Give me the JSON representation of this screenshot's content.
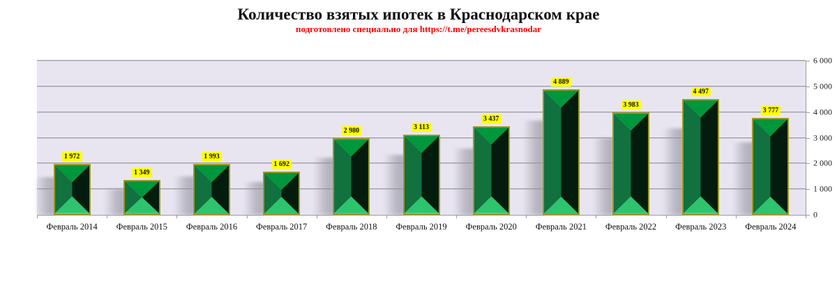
{
  "chart_data": {
    "type": "bar",
    "title": "Количество взятых ипотек в Краснодарском крае",
    "subtitle": "подготовлено специально для https://t.me/pereesdvkrasnodar",
    "categories": [
      "Февраль 2014",
      "Февраль 2015",
      "Февраль 2016",
      "Февраль 2017",
      "Февраль 2018",
      "Февраль 2019",
      "Февраль 2020",
      "Февраль 2021",
      "Февраль 2022",
      "Февраль 2023",
      "Февраль 2024"
    ],
    "values": [
      1972,
      1349,
      1993,
      1692,
      2980,
      3113,
      3437,
      4889,
      3983,
      4497,
      3777
    ],
    "value_labels": [
      "1 972",
      "1 349",
      "1 993",
      "1 692",
      "2 980",
      "3 113",
      "3 437",
      "4 889",
      "3 983",
      "4 497",
      "3 777"
    ],
    "xlabel": "",
    "ylabel": "",
    "ylim": [
      0,
      6000
    ],
    "yticks": [
      0,
      1000,
      2000,
      3000,
      4000,
      5000,
      6000
    ],
    "ytick_labels": [
      "0",
      "1 000",
      "2 000",
      "3 000",
      "4 000",
      "5 000",
      "6 000"
    ],
    "y_axis_position": "right",
    "grid": true,
    "legend": null,
    "colors": {
      "plot_background": "#e8e5f1",
      "bar_top": "#00963c",
      "bar_left": "#11713f",
      "bar_right": "#041c0d",
      "bar_bottom": "#2ec46e",
      "bar_border": "#9a9a20",
      "label_background": "#ffff00",
      "subtitle": "#ff0000"
    }
  }
}
